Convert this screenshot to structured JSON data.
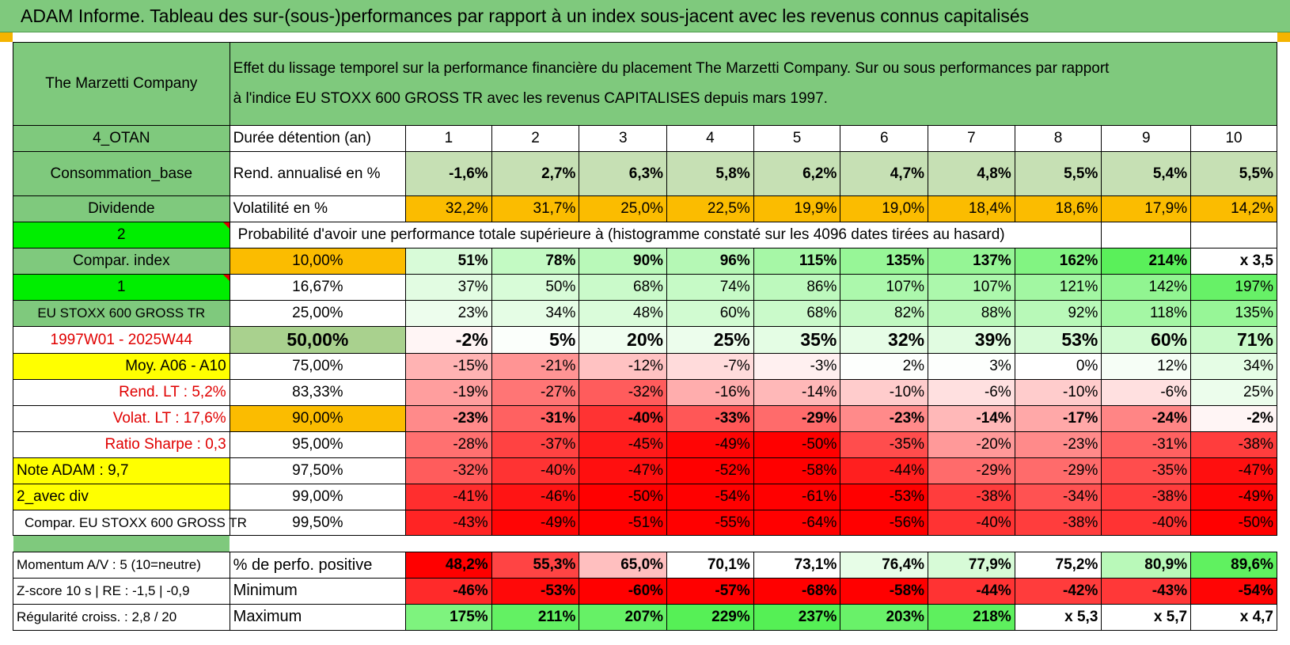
{
  "title": "ADAM Informe. Tableau des sur-(sous-)performances par rapport à un index sous-jacent avec les revenus connus capitalisés",
  "company": "The Marzetti Company",
  "description_line1": "Effet du lissage temporel sur la performance financière du placement The Marzetti Company. Sur ou sous performances par rapport",
  "description_line2": "à l'indice EU STOXX 600 GROSS TR avec les revenus CAPITALISES depuis mars 1997.",
  "side_labels": {
    "r1": "4_OTAN",
    "r2": "Consommation_base",
    "r3": "Dividende",
    "r4": "2",
    "r5": "Compar. index",
    "r6": "1",
    "r7": "EU STOXX 600 GROSS TR",
    "r8": "1997W01 - 2025W44",
    "r9": "Moy. A06 - A10",
    "r10": "Rend. LT :    5,2%",
    "r11": "Volat. LT :    17,6%",
    "r12": "Ratio Sharpe :     0,3",
    "r13": "Note ADAM : 9,7",
    "r14": "2_avec div",
    "r15": "Compar. EU STOXX 600 GROSS TR",
    "r16": "Momentum A/V : 5 (10=neutre)",
    "r17": "Z-score 10 s | RE : -1,5 | -0,9",
    "r18": "Régularité croiss. : 2,8 / 20"
  },
  "row_labels": {
    "duration": "Durée détention (an)",
    "return": "Rend. annualisé en %",
    "volatility": "Volatilité en %",
    "probability": "Probabilité d'avoir une performance totale supérieure à (histogramme constaté sur les 4096 dates tirées au hasard)",
    "positive": "% de perfo. positive",
    "minimum": "Minimum",
    "maximum": "Maximum"
  },
  "years": [
    "1",
    "2",
    "3",
    "4",
    "5",
    "6",
    "7",
    "8",
    "9",
    "10"
  ],
  "returns": [
    "-1,6%",
    "2,7%",
    "6,3%",
    "5,8%",
    "6,2%",
    "4,7%",
    "4,8%",
    "5,5%",
    "5,4%",
    "5,5%"
  ],
  "volatilities": [
    "32,2%",
    "31,7%",
    "25,0%",
    "22,5%",
    "19,9%",
    "19,0%",
    "18,4%",
    "18,6%",
    "17,9%",
    "14,2%"
  ],
  "percentiles": [
    {
      "p": "10,00%",
      "v": [
        "51%",
        "78%",
        "90%",
        "96%",
        "115%",
        "135%",
        "137%",
        "162%",
        "214%",
        "x 3,5"
      ]
    },
    {
      "p": "16,67%",
      "v": [
        "37%",
        "50%",
        "68%",
        "74%",
        "86%",
        "107%",
        "107%",
        "121%",
        "142%",
        "197%"
      ]
    },
    {
      "p": "25,00%",
      "v": [
        "23%",
        "34%",
        "48%",
        "60%",
        "68%",
        "82%",
        "88%",
        "92%",
        "118%",
        "135%"
      ]
    },
    {
      "p": "50,00%",
      "v": [
        "-2%",
        "5%",
        "20%",
        "25%",
        "35%",
        "32%",
        "39%",
        "53%",
        "60%",
        "71%"
      ]
    },
    {
      "p": "75,00%",
      "v": [
        "-15%",
        "-21%",
        "-12%",
        "-7%",
        "-3%",
        "2%",
        "3%",
        "0%",
        "12%",
        "34%"
      ]
    },
    {
      "p": "83,33%",
      "v": [
        "-19%",
        "-27%",
        "-32%",
        "-16%",
        "-14%",
        "-10%",
        "-6%",
        "-10%",
        "-6%",
        "25%"
      ]
    },
    {
      "p": "90,00%",
      "v": [
        "-23%",
        "-31%",
        "-40%",
        "-33%",
        "-29%",
        "-23%",
        "-14%",
        "-17%",
        "-24%",
        "-2%"
      ]
    },
    {
      "p": "95,00%",
      "v": [
        "-28%",
        "-37%",
        "-45%",
        "-49%",
        "-50%",
        "-35%",
        "-20%",
        "-23%",
        "-31%",
        "-38%"
      ]
    },
    {
      "p": "97,50%",
      "v": [
        "-32%",
        "-40%",
        "-47%",
        "-52%",
        "-58%",
        "-44%",
        "-29%",
        "-29%",
        "-35%",
        "-47%"
      ]
    },
    {
      "p": "99,00%",
      "v": [
        "-41%",
        "-46%",
        "-50%",
        "-54%",
        "-61%",
        "-53%",
        "-38%",
        "-34%",
        "-38%",
        "-49%"
      ]
    },
    {
      "p": "99,50%",
      "v": [
        "-43%",
        "-49%",
        "-51%",
        "-55%",
        "-64%",
        "-56%",
        "-40%",
        "-38%",
        "-40%",
        "-50%"
      ]
    }
  ],
  "positive": [
    "48,2%",
    "55,3%",
    "65,0%",
    "70,1%",
    "73,1%",
    "76,4%",
    "77,9%",
    "75,2%",
    "80,9%",
    "89,6%"
  ],
  "minimum": [
    "-46%",
    "-53%",
    "-60%",
    "-57%",
    "-68%",
    "-58%",
    "-44%",
    "-42%",
    "-43%",
    "-54%"
  ],
  "maximum": [
    "175%",
    "211%",
    "207%",
    "229%",
    "237%",
    "203%",
    "218%",
    "x 5,3",
    "x 5,7",
    "x 4,7"
  ],
  "colors": {
    "green": "#7fc97d",
    "bright_green": "#00ee00",
    "orange": "#fbbc00",
    "yellow": "#ffff00",
    "red_text": "#e00000"
  }
}
